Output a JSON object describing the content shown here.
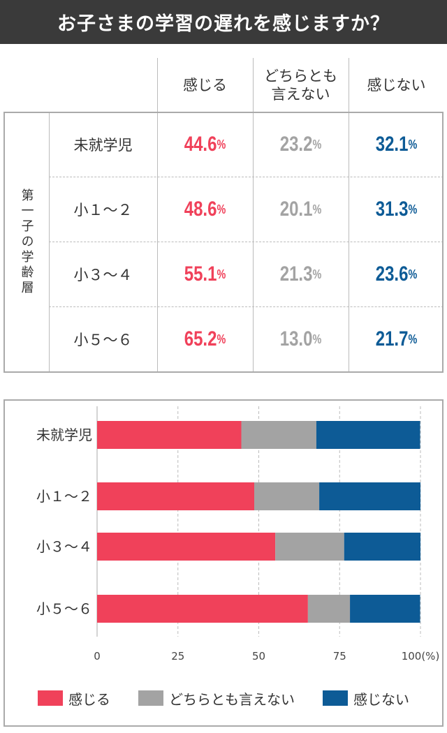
{
  "header": {
    "title": "お子さまの学習の遅れを感じますか？"
  },
  "table": {
    "columns": [
      "感じる",
      "どちらとも\n言えない",
      "感じない"
    ],
    "side_label": "第一子の学齢層",
    "rows": [
      {
        "label": "未就学児",
        "values": [
          "44.6",
          "23.2",
          "32.1"
        ]
      },
      {
        "label": "小１～２",
        "values": [
          "48.6",
          "20.1",
          "31.3"
        ]
      },
      {
        "label": "小３～４",
        "values": [
          "55.1",
          "21.3",
          "23.6"
        ]
      },
      {
        "label": "小５～６",
        "values": [
          "65.2",
          "13.0",
          "21.7"
        ]
      }
    ],
    "unit": "%"
  },
  "colors": {
    "feel": "#f0415a",
    "neutral": "#a3a3a3",
    "not_feel": "#0d5b96"
  },
  "chart_data": {
    "type": "bar",
    "orientation": "horizontal",
    "stacked": true,
    "categories": [
      "未就学児",
      "小１～２",
      "小３～４",
      "小５～６"
    ],
    "series": [
      {
        "name": "感じる",
        "values": [
          44.6,
          48.6,
          55.1,
          65.2
        ],
        "color": "#f0415a"
      },
      {
        "name": "どちらとも言えない",
        "values": [
          23.2,
          20.1,
          21.3,
          13.0
        ],
        "color": "#a3a3a3"
      },
      {
        "name": "感じない",
        "values": [
          32.1,
          31.3,
          23.6,
          21.7
        ],
        "color": "#0d5b96"
      }
    ],
    "x_ticks": [
      "0",
      "25",
      "50",
      "75",
      "100(%)"
    ],
    "xlim": [
      0,
      100
    ],
    "grid": true,
    "legend": "bottom"
  }
}
